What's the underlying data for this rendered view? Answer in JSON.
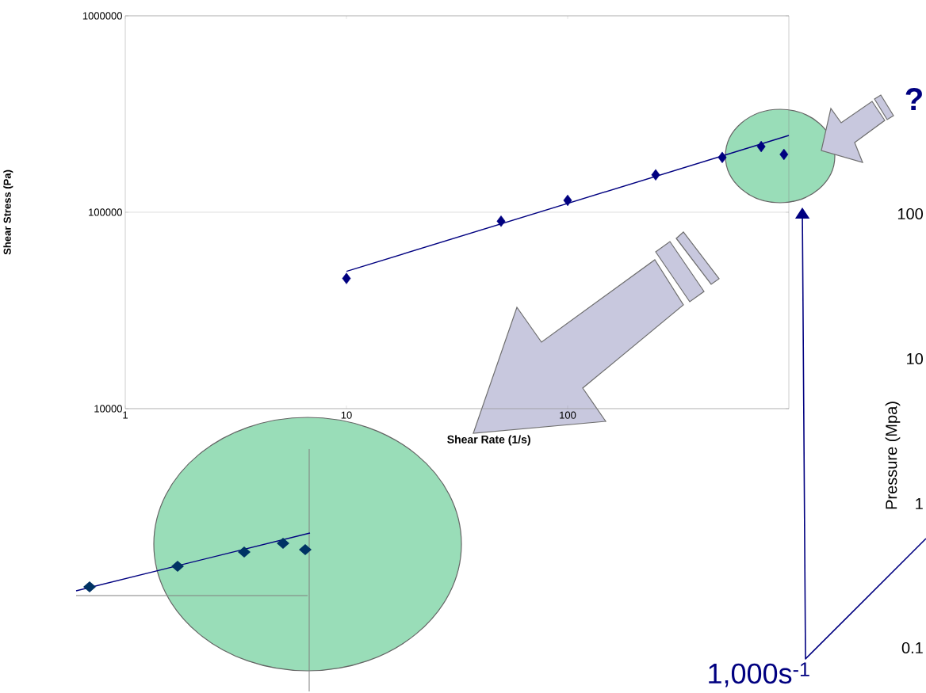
{
  "chart_data": [
    {
      "type": "scatter",
      "xlabel": "Shear Rate (1/s)",
      "ylabel": "Shear Stress (Pa)",
      "log": "xy",
      "xlim": [
        1,
        1000
      ],
      "ylim": [
        10000,
        1000000
      ],
      "xticks": [
        1,
        10,
        100
      ],
      "yticks": [
        10000,
        100000,
        1000000
      ],
      "grid": "y",
      "series": [
        {
          "type": "scatter",
          "marker": "diamond",
          "color": "#000080",
          "x": [
            10,
            50,
            100,
            250,
            500,
            750,
            950
          ],
          "values": [
            46000,
            90000,
            115000,
            155000,
            190000,
            216000,
            197000
          ]
        },
        {
          "type": "line",
          "marker": "none",
          "line_style": "solid",
          "color": "#000080",
          "x": [
            10,
            1000
          ],
          "values": [
            50000,
            246000
          ]
        }
      ],
      "annotations": [
        "?",
        "1,000s$^{-1}$"
      ]
    },
    {
      "type": "other",
      "ylabel": "Pressure (Mpa)",
      "annotations": [
        "100",
        "10",
        "1",
        "0.1"
      ]
    }
  ]
}
